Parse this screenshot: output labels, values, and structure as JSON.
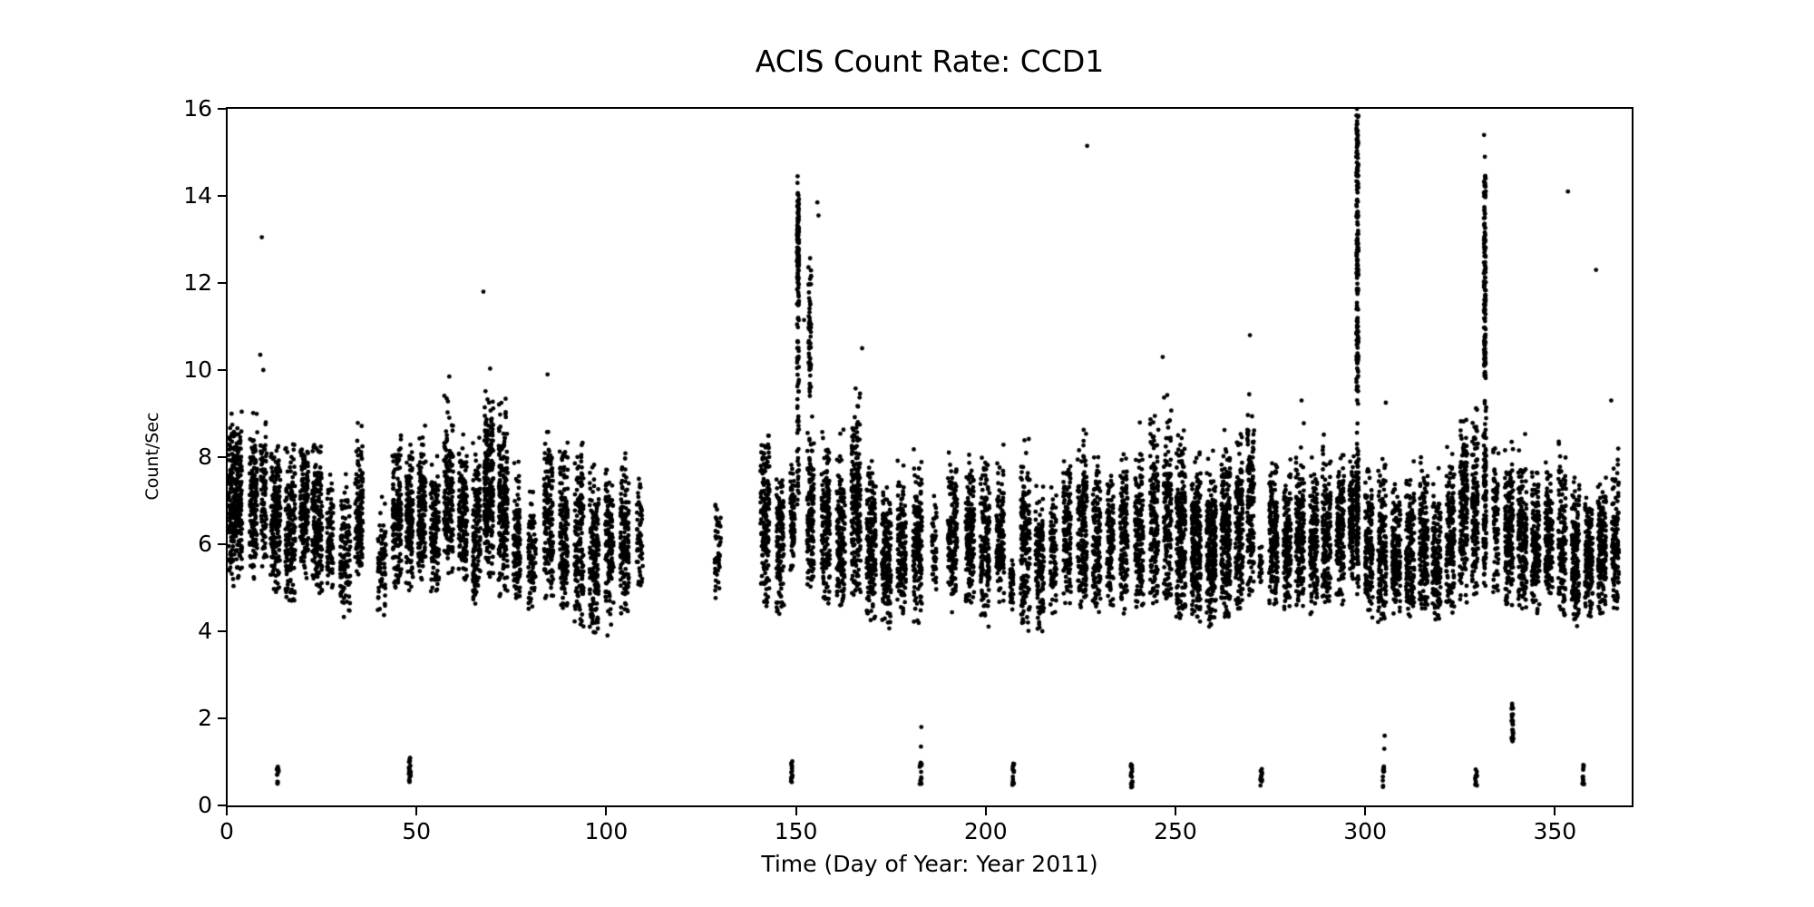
{
  "title": "ACIS Count Rate: CCD1",
  "xlabel": "Time (Day of Year: Year 2011)",
  "ylabel": "Count/Sec",
  "chart_data": {
    "type": "scatter",
    "title": "ACIS Count Rate: CCD1",
    "xlabel": "Time (Day of Year: Year 2011)",
    "ylabel": "Count/Sec",
    "xlim": [
      0,
      370
    ],
    "ylim": [
      0,
      16
    ],
    "xticks": [
      0,
      50,
      100,
      150,
      200,
      250,
      300,
      350
    ],
    "yticks": [
      0,
      2,
      4,
      6,
      8,
      10,
      12,
      14,
      16
    ],
    "grid": false,
    "legend": false,
    "marker": {
      "shape": "dot",
      "color": "#000000",
      "radius_px": 2.4
    },
    "description": "Year-long X-ray count-rate light curve; dense vertical observation stripes mostly between 4 and 9 counts/sec, a data gap near days 110-140, tall flare spikes near days 150, 298 and 331, isolated high outliers, and short low-rate clusters near 0.5-1 counts/sec scattered through the year.",
    "clusters_format": [
      "day_center",
      "day_width",
      "n_points",
      "y_min",
      "y_max",
      "y_mode",
      "optional 'u'=uniform"
    ],
    "clusters": [
      [
        2.0,
        3.6,
        280,
        5.0,
        9.3,
        6.9
      ],
      [
        6.8,
        2.0,
        150,
        5.2,
        9.4,
        7.0
      ],
      [
        9.5,
        1.6,
        90,
        5.4,
        10.1,
        7.1
      ],
      [
        12.6,
        2.6,
        190,
        4.9,
        8.7,
        6.4
      ],
      [
        16.5,
        2.6,
        170,
        4.6,
        9.0,
        6.3
      ],
      [
        20.2,
        2.2,
        150,
        5.1,
        8.7,
        6.7
      ],
      [
        23.6,
        2.6,
        190,
        4.8,
        9.2,
        6.4
      ],
      [
        27.0,
        1.6,
        90,
        5.0,
        8.1,
        6.2
      ],
      [
        31.0,
        2.6,
        120,
        4.1,
        8.0,
        5.8
      ],
      [
        34.6,
        2.0,
        140,
        5.3,
        9.2,
        6.8
      ],
      [
        40.6,
        2.2,
        70,
        4.3,
        7.5,
        5.7
      ],
      [
        44.6,
        2.4,
        160,
        5.0,
        9.2,
        6.6
      ],
      [
        47.9,
        1.8,
        150,
        4.9,
        8.3,
        6.6
      ],
      [
        51.2,
        2.0,
        150,
        5.1,
        8.8,
        6.7
      ],
      [
        54.6,
        2.2,
        150,
        4.9,
        8.3,
        6.2
      ],
      [
        58.2,
        2.4,
        170,
        5.2,
        9.7,
        7.0
      ],
      [
        62.0,
        2.2,
        150,
        5.0,
        8.7,
        6.5
      ],
      [
        65.6,
        2.0,
        140,
        4.6,
        9.1,
        6.3
      ],
      [
        68.8,
        2.4,
        240,
        5.2,
        10.4,
        7.4
      ],
      [
        72.6,
        2.4,
        210,
        4.8,
        9.6,
        6.9
      ],
      [
        76.2,
        1.8,
        120,
        4.6,
        8.2,
        6.0
      ],
      [
        80.2,
        2.0,
        90,
        4.3,
        7.5,
        5.7
      ],
      [
        84.6,
        2.4,
        160,
        4.7,
        9.8,
        6.4
      ],
      [
        88.6,
        2.2,
        160,
        4.5,
        8.8,
        6.2
      ],
      [
        92.6,
        2.4,
        160,
        4.1,
        9.3,
        6.0
      ],
      [
        96.6,
        2.4,
        160,
        3.7,
        8.4,
        5.7
      ],
      [
        100.6,
        2.2,
        150,
        3.9,
        8.1,
        5.9
      ],
      [
        104.6,
        2.2,
        140,
        4.4,
        8.2,
        6.1
      ],
      [
        108.6,
        1.6,
        60,
        4.8,
        8.0,
        6.2
      ],
      [
        129.2,
        1.8,
        45,
        4.5,
        7.3,
        6.0
      ],
      [
        141.6,
        2.4,
        160,
        4.5,
        9.3,
        6.4
      ],
      [
        145.6,
        2.0,
        130,
        4.3,
        8.2,
        6.0
      ],
      [
        148.9,
        1.2,
        90,
        5.0,
        8.1,
        6.5
      ],
      [
        150.3,
        0.5,
        60,
        6.9,
        11.6,
        9.2,
        "u"
      ],
      [
        150.3,
        0.5,
        110,
        11.6,
        14.5,
        12.9
      ],
      [
        153.4,
        0.7,
        55,
        9.4,
        12.6,
        11.0,
        "u"
      ],
      [
        153.6,
        1.8,
        130,
        4.9,
        9.4,
        6.6
      ],
      [
        157.6,
        2.2,
        160,
        4.6,
        8.8,
        6.3
      ],
      [
        161.6,
        2.2,
        160,
        4.5,
        9.0,
        6.2
      ],
      [
        165.6,
        2.4,
        210,
        4.8,
        10.4,
        6.8
      ],
      [
        169.6,
        2.4,
        190,
        4.2,
        8.6,
        5.9
      ],
      [
        173.6,
        2.4,
        170,
        4.0,
        7.7,
        5.6
      ],
      [
        177.6,
        2.2,
        150,
        4.2,
        8.3,
        5.9
      ],
      [
        181.8,
        2.4,
        160,
        4.1,
        8.4,
        6.1
      ],
      [
        186.2,
        1.2,
        45,
        4.5,
        7.3,
        5.8
      ],
      [
        191.0,
        2.4,
        160,
        4.4,
        8.7,
        6.3
      ],
      [
        195.6,
        2.2,
        150,
        4.5,
        8.3,
        6.1
      ],
      [
        199.6,
        2.4,
        160,
        4.1,
        8.8,
        6.0
      ],
      [
        203.6,
        2.0,
        130,
        4.4,
        8.4,
        6.1
      ],
      [
        206.6,
        0.9,
        40,
        4.4,
        5.9,
        5.1
      ],
      [
        210.2,
        2.4,
        170,
        3.9,
        8.8,
        6.0
      ],
      [
        214.0,
        2.2,
        140,
        4.0,
        7.7,
        5.6
      ],
      [
        217.6,
        1.6,
        85,
        4.4,
        7.7,
        5.8
      ],
      [
        221.2,
        2.0,
        130,
        4.6,
        8.6,
        6.2
      ],
      [
        225.2,
        2.4,
        180,
        4.5,
        9.3,
        6.4
      ],
      [
        229.0,
        2.0,
        140,
        4.4,
        8.8,
        6.1
      ],
      [
        232.6,
        1.8,
        120,
        4.5,
        8.1,
        6.0
      ],
      [
        236.2,
        2.0,
        140,
        4.3,
        8.6,
        6.1
      ],
      [
        240.2,
        2.2,
        160,
        4.5,
        9.0,
        6.3
      ],
      [
        244.2,
        2.2,
        170,
        4.6,
        9.6,
        6.5
      ],
      [
        247.7,
        2.0,
        160,
        4.7,
        10.2,
        6.8
      ],
      [
        251.2,
        2.4,
        220,
        4.3,
        9.0,
        6.2
      ],
      [
        255.2,
        2.4,
        240,
        4.2,
        8.6,
        6.0
      ],
      [
        259.2,
        2.4,
        240,
        4.1,
        8.4,
        5.9
      ],
      [
        263.0,
        2.4,
        220,
        4.3,
        8.8,
        6.1
      ],
      [
        266.6,
        2.0,
        160,
        4.5,
        9.2,
        6.3
      ],
      [
        269.6,
        1.8,
        150,
        4.8,
        10.7,
        6.9
      ],
      [
        272.2,
        0.8,
        25,
        5.0,
        6.1,
        5.5
      ],
      [
        275.6,
        2.2,
        170,
        4.4,
        8.6,
        6.1
      ],
      [
        279.2,
        2.0,
        150,
        4.5,
        8.3,
        6.0
      ],
      [
        282.6,
        2.2,
        160,
        4.4,
        9.2,
        6.2
      ],
      [
        286.2,
        2.0,
        150,
        4.3,
        8.4,
        6.0
      ],
      [
        289.6,
        2.2,
        160,
        4.5,
        8.8,
        6.2
      ],
      [
        293.2,
        2.0,
        150,
        4.6,
        8.6,
        6.3
      ],
      [
        296.2,
        1.2,
        100,
        4.8,
        8.2,
        6.4
      ],
      [
        297.7,
        0.7,
        110,
        4.8,
        9.5,
        6.8
      ],
      [
        297.7,
        0.55,
        170,
        9.5,
        15.95,
        12.5,
        "u"
      ],
      [
        300.8,
        2.0,
        150,
        4.3,
        8.2,
        5.9
      ],
      [
        304.2,
        2.2,
        160,
        4.2,
        8.4,
        5.9
      ],
      [
        308.0,
        2.2,
        160,
        4.4,
        8.0,
        5.8
      ],
      [
        311.6,
        2.2,
        160,
        4.3,
        8.2,
        5.9
      ],
      [
        315.2,
        2.2,
        160,
        4.5,
        8.4,
        6.0
      ],
      [
        318.6,
        2.2,
        160,
        4.2,
        7.9,
        5.7
      ],
      [
        322.2,
        2.2,
        160,
        4.4,
        8.6,
        6.1
      ],
      [
        325.7,
        2.0,
        170,
        4.6,
        9.8,
        6.6
      ],
      [
        328.7,
        1.6,
        130,
        4.8,
        10.2,
        7.0
      ],
      [
        331.3,
        0.8,
        110,
        4.8,
        9.8,
        7.0
      ],
      [
        331.3,
        0.5,
        130,
        9.8,
        14.5,
        12.0,
        "u"
      ],
      [
        334.2,
        1.4,
        80,
        4.8,
        9.3,
        6.6
      ],
      [
        337.7,
        2.2,
        180,
        4.4,
        8.8,
        6.3
      ],
      [
        341.2,
        2.2,
        180,
        4.5,
        8.6,
        6.2
      ],
      [
        344.7,
        2.0,
        160,
        4.4,
        8.2,
        6.0
      ],
      [
        348.2,
        2.0,
        150,
        4.6,
        8.4,
        6.1
      ],
      [
        351.7,
        2.0,
        130,
        4.3,
        9.2,
        6.0
      ],
      [
        355.2,
        2.0,
        150,
        4.1,
        8.0,
        5.7
      ],
      [
        358.7,
        2.0,
        150,
        4.3,
        7.8,
        5.6
      ],
      [
        362.2,
        2.2,
        160,
        4.4,
        8.2,
        5.9
      ],
      [
        365.7,
        1.8,
        130,
        4.5,
        8.6,
        6.1
      ]
    ],
    "low_rate_clusters_format": [
      "day",
      "y_min",
      "y_max",
      "n_points"
    ],
    "low_rate_clusters": [
      [
        13.2,
        0.45,
        0.95,
        14
      ],
      [
        48.0,
        0.5,
        1.1,
        22
      ],
      [
        148.6,
        0.45,
        1.05,
        16
      ],
      [
        182.6,
        0.45,
        1.0,
        14
      ],
      [
        207.0,
        0.45,
        1.0,
        16
      ],
      [
        238.2,
        0.4,
        0.95,
        16
      ],
      [
        272.4,
        0.45,
        0.9,
        14
      ],
      [
        304.6,
        0.4,
        0.9,
        12
      ],
      [
        329.0,
        0.4,
        0.9,
        12
      ],
      [
        338.6,
        1.45,
        2.35,
        26
      ],
      [
        357.2,
        0.45,
        0.95,
        12
      ]
    ],
    "outliers": [
      [
        9.0,
        13.05
      ],
      [
        8.6,
        10.35
      ],
      [
        9.4,
        10.0
      ],
      [
        58.4,
        9.85
      ],
      [
        67.4,
        11.8
      ],
      [
        84.3,
        9.9
      ],
      [
        151.9,
        11.15
      ],
      [
        155.4,
        13.85
      ],
      [
        155.7,
        13.55
      ],
      [
        167.2,
        10.5
      ],
      [
        182.7,
        1.35
      ],
      [
        182.8,
        1.8
      ],
      [
        226.5,
        15.15
      ],
      [
        246.4,
        10.3
      ],
      [
        269.4,
        10.8
      ],
      [
        283.0,
        9.3
      ],
      [
        297.6,
        16.0
      ],
      [
        297.5,
        15.5
      ],
      [
        297.7,
        15.2
      ],
      [
        304.8,
        1.3
      ],
      [
        304.9,
        1.6
      ],
      [
        305.2,
        9.25
      ],
      [
        331.1,
        15.4
      ],
      [
        331.3,
        14.9
      ],
      [
        353.2,
        14.1
      ],
      [
        360.6,
        12.3
      ],
      [
        364.6,
        9.3
      ]
    ],
    "seed": 20110101
  }
}
